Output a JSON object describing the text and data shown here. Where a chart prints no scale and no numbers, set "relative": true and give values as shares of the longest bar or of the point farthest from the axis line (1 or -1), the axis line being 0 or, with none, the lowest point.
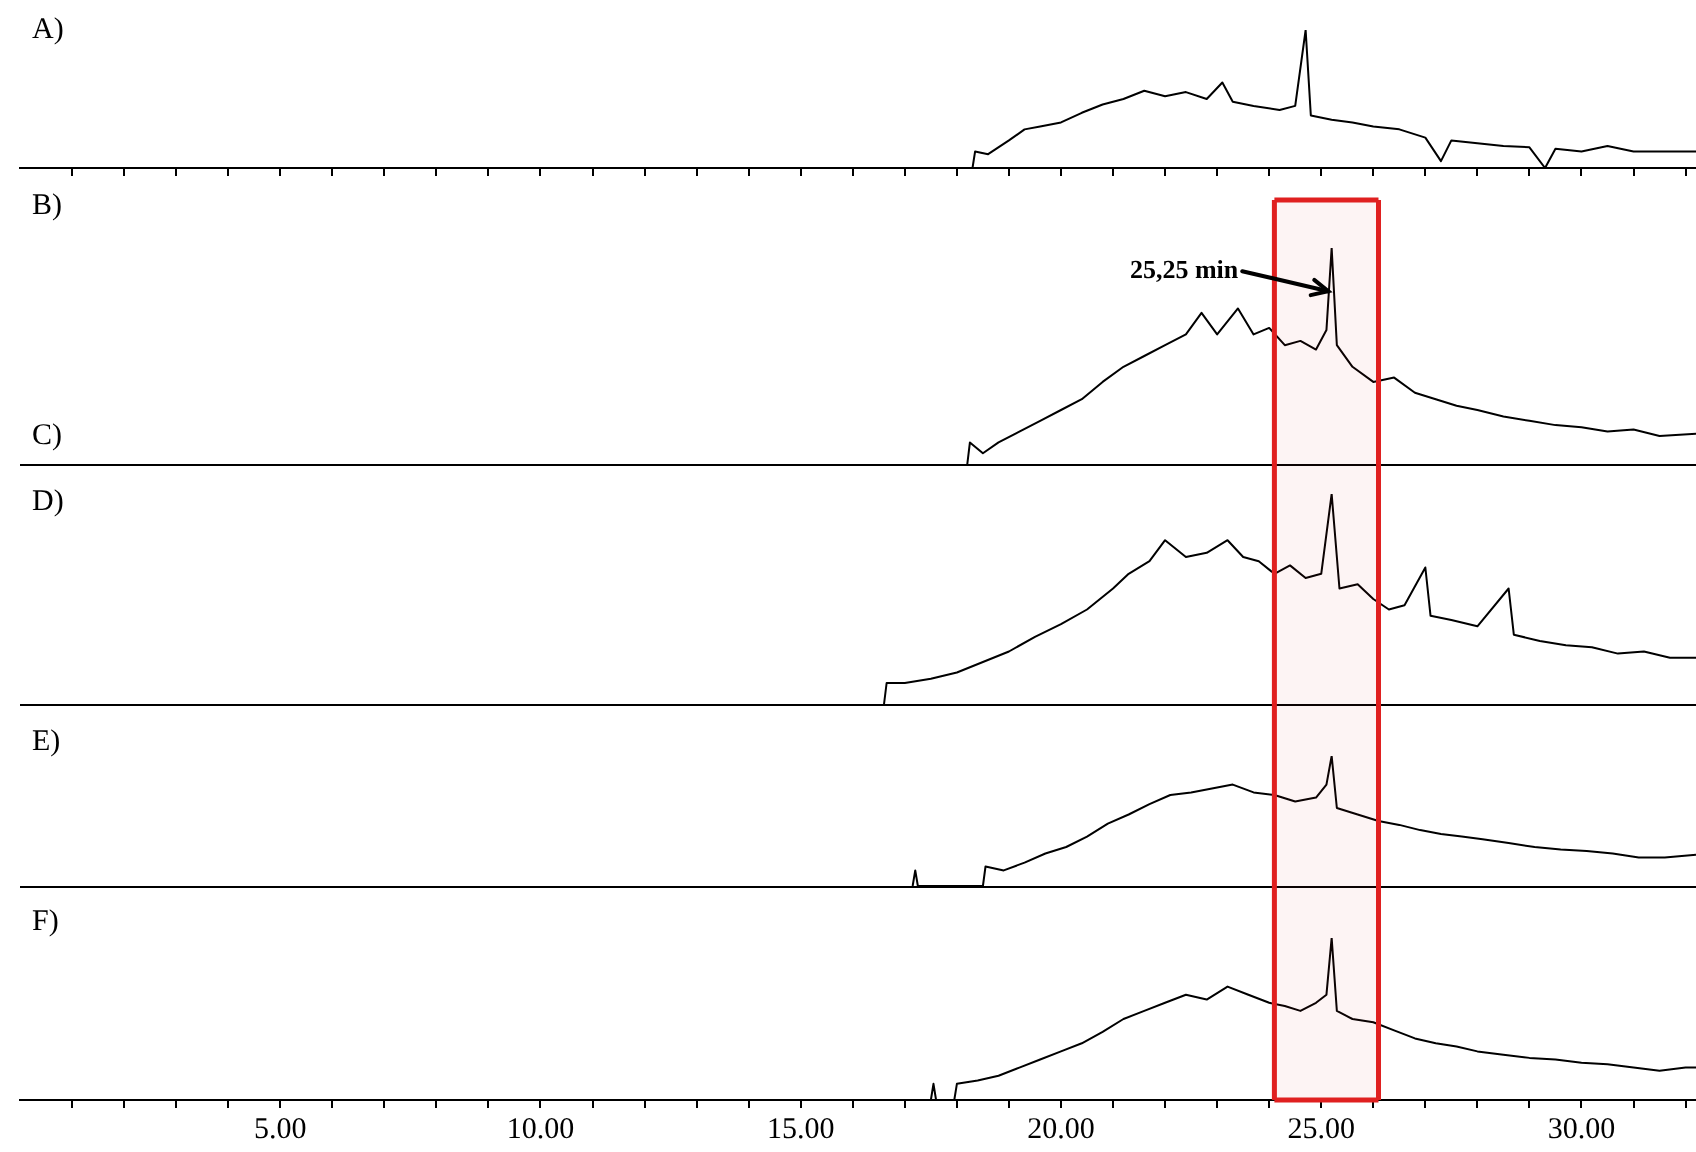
{
  "chart_data": [
    {
      "type": "line",
      "relative": true,
      "xlim": [
        0,
        32.2
      ],
      "tick_labels": false,
      "annotations": [
        "A)"
      ],
      "xticks": [
        {
          "value": 1,
          "label": null
        },
        {
          "value": 2,
          "label": null
        },
        {
          "value": 3,
          "label": null
        },
        {
          "value": 4,
          "label": null
        },
        {
          "value": 5,
          "label": null
        },
        {
          "value": 6,
          "label": null
        },
        {
          "value": 7,
          "label": null
        },
        {
          "value": 8,
          "label": null
        },
        {
          "value": 9,
          "label": null
        },
        {
          "value": 10,
          "label": null
        },
        {
          "value": 11,
          "label": null
        },
        {
          "value": 12,
          "label": null
        },
        {
          "value": 13,
          "label": null
        },
        {
          "value": 14,
          "label": null
        },
        {
          "value": 15,
          "label": null
        },
        {
          "value": 16,
          "label": null
        },
        {
          "value": 17,
          "label": null
        },
        {
          "value": 18,
          "label": null
        },
        {
          "value": 19,
          "label": null
        },
        {
          "value": 20,
          "label": null
        },
        {
          "value": 21,
          "label": null
        },
        {
          "value": 22,
          "label": null
        },
        {
          "value": 23,
          "label": null
        },
        {
          "value": 24,
          "label": null
        },
        {
          "value": 25,
          "label": null
        },
        {
          "value": 26,
          "label": null
        },
        {
          "value": 27,
          "label": null
        },
        {
          "value": 28,
          "label": null
        },
        {
          "value": 29,
          "label": null
        },
        {
          "value": 30,
          "label": null
        },
        {
          "value": 31,
          "label": null
        },
        {
          "value": 32,
          "label": null
        }
      ],
      "series": [
        {
          "color": "#000000",
          "x": [
            18.3,
            18.35,
            18.6,
            19.0,
            19.3,
            19.6,
            20.0,
            20.4,
            20.8,
            21.2,
            21.6,
            22.0,
            22.4,
            22.8,
            23.1,
            23.3,
            23.7,
            24.2,
            24.5,
            24.7,
            24.8,
            25.2,
            25.6,
            26.0,
            26.5,
            27.0,
            27.3,
            27.5,
            28.0,
            28.5,
            29.0,
            29.3,
            29.5,
            30.0,
            30.5,
            31.0,
            31.5,
            32.2
          ],
          "values": [
            0,
            0.12,
            0.1,
            0.2,
            0.28,
            0.3,
            0.33,
            0.4,
            0.46,
            0.5,
            0.56,
            0.52,
            0.55,
            0.5,
            0.62,
            0.48,
            0.45,
            0.42,
            0.45,
            1.0,
            0.38,
            0.35,
            0.33,
            0.3,
            0.28,
            0.22,
            0.05,
            0.2,
            0.18,
            0.16,
            0.15,
            0.0,
            0.14,
            0.12,
            0.16,
            0.12,
            0.12,
            0.12
          ]
        }
      ]
    },
    {
      "type": "line",
      "relative": true,
      "xlim": [
        0,
        32.2
      ],
      "tick_labels": false,
      "annotations": [
        "B)",
        "C)",
        {
          "text": "25,25 min",
          "x": 25.25,
          "y": 0.8
        }
      ],
      "bands": [
        {
          "axis": "x",
          "from": 24.1,
          "to": 26.1,
          "color": "#e02020"
        }
      ],
      "series": [
        {
          "color": "#000000",
          "x": [
            18.2,
            18.25,
            18.5,
            18.8,
            19.2,
            19.6,
            20.0,
            20.4,
            20.8,
            21.2,
            21.6,
            22.0,
            22.4,
            22.7,
            23.0,
            23.4,
            23.7,
            24.0,
            24.3,
            24.6,
            24.9,
            25.1,
            25.2,
            25.3,
            25.6,
            26.0,
            26.4,
            26.8,
            27.2,
            27.6,
            28.0,
            28.5,
            29.0,
            29.5,
            30.0,
            30.5,
            31.0,
            31.5,
            32.2
          ],
          "values": [
            0,
            0.1,
            0.05,
            0.1,
            0.15,
            0.2,
            0.25,
            0.3,
            0.38,
            0.45,
            0.5,
            0.55,
            0.6,
            0.7,
            0.6,
            0.72,
            0.6,
            0.63,
            0.55,
            0.57,
            0.53,
            0.62,
            1.0,
            0.55,
            0.45,
            0.38,
            0.4,
            0.33,
            0.3,
            0.27,
            0.25,
            0.22,
            0.2,
            0.18,
            0.17,
            0.15,
            0.16,
            0.13,
            0.14
          ]
        }
      ]
    },
    {
      "type": "line",
      "relative": true,
      "xlim": [
        0,
        32.2
      ],
      "tick_labels": false,
      "annotations": [
        "D)"
      ],
      "bands": [
        {
          "axis": "x",
          "from": 24.1,
          "to": 26.1,
          "color": "#e02020"
        }
      ],
      "series": [
        {
          "color": "#000000",
          "x": [
            16.6,
            16.65,
            17.0,
            17.5,
            18.0,
            18.5,
            19.0,
            19.5,
            20.0,
            20.5,
            21.0,
            21.3,
            21.7,
            22.0,
            22.4,
            22.8,
            23.2,
            23.5,
            23.8,
            24.1,
            24.4,
            24.7,
            25.0,
            25.2,
            25.35,
            25.7,
            26.0,
            26.3,
            26.6,
            27.0,
            27.1,
            27.5,
            28.0,
            28.6,
            28.7,
            29.2,
            29.7,
            30.2,
            30.7,
            31.2,
            31.7,
            32.2
          ],
          "values": [
            0,
            0.1,
            0.1,
            0.12,
            0.15,
            0.2,
            0.25,
            0.32,
            0.38,
            0.45,
            0.55,
            0.62,
            0.68,
            0.78,
            0.7,
            0.72,
            0.78,
            0.7,
            0.68,
            0.62,
            0.66,
            0.6,
            0.62,
            1.0,
            0.55,
            0.57,
            0.5,
            0.45,
            0.47,
            0.65,
            0.42,
            0.4,
            0.37,
            0.55,
            0.33,
            0.3,
            0.28,
            0.27,
            0.24,
            0.25,
            0.22,
            0.22
          ]
        }
      ]
    },
    {
      "type": "line",
      "relative": true,
      "xlim": [
        0,
        32.2
      ],
      "tick_labels": false,
      "annotations": [
        "E)"
      ],
      "bands": [
        {
          "axis": "x",
          "from": 24.1,
          "to": 26.1,
          "color": "#e02020"
        }
      ],
      "series": [
        {
          "color": "#000000",
          "x": [
            17.15,
            17.2,
            17.25,
            18.5,
            18.55,
            18.9,
            19.3,
            19.7,
            20.1,
            20.5,
            20.9,
            21.3,
            21.7,
            22.1,
            22.5,
            22.9,
            23.3,
            23.7,
            24.1,
            24.5,
            24.9,
            25.1,
            25.2,
            25.3,
            25.7,
            26.1,
            26.5,
            26.9,
            27.3,
            27.7,
            28.1,
            28.6,
            29.1,
            29.6,
            30.1,
            30.6,
            31.1,
            31.6,
            32.2
          ],
          "values": [
            0,
            0.12,
            0,
            0,
            0.15,
            0.12,
            0.18,
            0.25,
            0.3,
            0.38,
            0.48,
            0.55,
            0.63,
            0.7,
            0.72,
            0.75,
            0.78,
            0.72,
            0.7,
            0.65,
            0.68,
            0.78,
            1.0,
            0.6,
            0.55,
            0.5,
            0.47,
            0.43,
            0.4,
            0.38,
            0.36,
            0.33,
            0.3,
            0.28,
            0.27,
            0.25,
            0.22,
            0.22,
            0.24
          ]
        }
      ]
    },
    {
      "type": "line",
      "relative": true,
      "xlim": [
        0,
        32.2
      ],
      "tick_labels": "x",
      "annotations": [
        "F)"
      ],
      "bands": [
        {
          "axis": "x",
          "from": 24.1,
          "to": 26.1,
          "color": "#e02020"
        }
      ],
      "xticks": [
        {
          "value": 1,
          "label": null
        },
        {
          "value": 2,
          "label": null
        },
        {
          "value": 3,
          "label": null
        },
        {
          "value": 4,
          "label": null
        },
        {
          "value": 5,
          "label": "5.00"
        },
        {
          "value": 6,
          "label": null
        },
        {
          "value": 7,
          "label": null
        },
        {
          "value": 8,
          "label": null
        },
        {
          "value": 9,
          "label": null
        },
        {
          "value": 10,
          "label": "10.00"
        },
        {
          "value": 11,
          "label": null
        },
        {
          "value": 12,
          "label": null
        },
        {
          "value": 13,
          "label": null
        },
        {
          "value": 14,
          "label": null
        },
        {
          "value": 15,
          "label": "15.00"
        },
        {
          "value": 16,
          "label": null
        },
        {
          "value": 17,
          "label": null
        },
        {
          "value": 18,
          "label": null
        },
        {
          "value": 19,
          "label": null
        },
        {
          "value": 20,
          "label": "20.00"
        },
        {
          "value": 21,
          "label": null
        },
        {
          "value": 22,
          "label": null
        },
        {
          "value": 23,
          "label": null
        },
        {
          "value": 24,
          "label": null
        },
        {
          "value": 25,
          "label": "25.00"
        },
        {
          "value": 26,
          "label": null
        },
        {
          "value": 27,
          "label": null
        },
        {
          "value": 28,
          "label": null
        },
        {
          "value": 29,
          "label": null
        },
        {
          "value": 30,
          "label": "30.00"
        },
        {
          "value": 31,
          "label": null
        },
        {
          "value": 32,
          "label": null
        }
      ],
      "series": [
        {
          "color": "#000000",
          "x": [
            17.5,
            17.55,
            17.6,
            17.95,
            18.0,
            18.4,
            18.8,
            19.2,
            19.6,
            20.0,
            20.4,
            20.8,
            21.2,
            21.6,
            22.0,
            22.4,
            22.8,
            23.2,
            23.6,
            24.0,
            24.3,
            24.6,
            24.9,
            25.1,
            25.2,
            25.3,
            25.6,
            26.0,
            26.4,
            26.8,
            27.2,
            27.6,
            28.0,
            28.5,
            29.0,
            29.5,
            30.0,
            30.5,
            31.0,
            31.5,
            32.0,
            32.2
          ],
          "values": [
            0,
            0.1,
            0,
            0,
            0.1,
            0.12,
            0.15,
            0.2,
            0.25,
            0.3,
            0.35,
            0.42,
            0.5,
            0.55,
            0.6,
            0.65,
            0.62,
            0.7,
            0.65,
            0.6,
            0.58,
            0.55,
            0.6,
            0.65,
            1.0,
            0.55,
            0.5,
            0.48,
            0.43,
            0.38,
            0.35,
            0.33,
            0.3,
            0.28,
            0.26,
            0.25,
            0.23,
            0.22,
            0.2,
            0.18,
            0.2,
            0.2
          ]
        }
      ]
    }
  ]
}
